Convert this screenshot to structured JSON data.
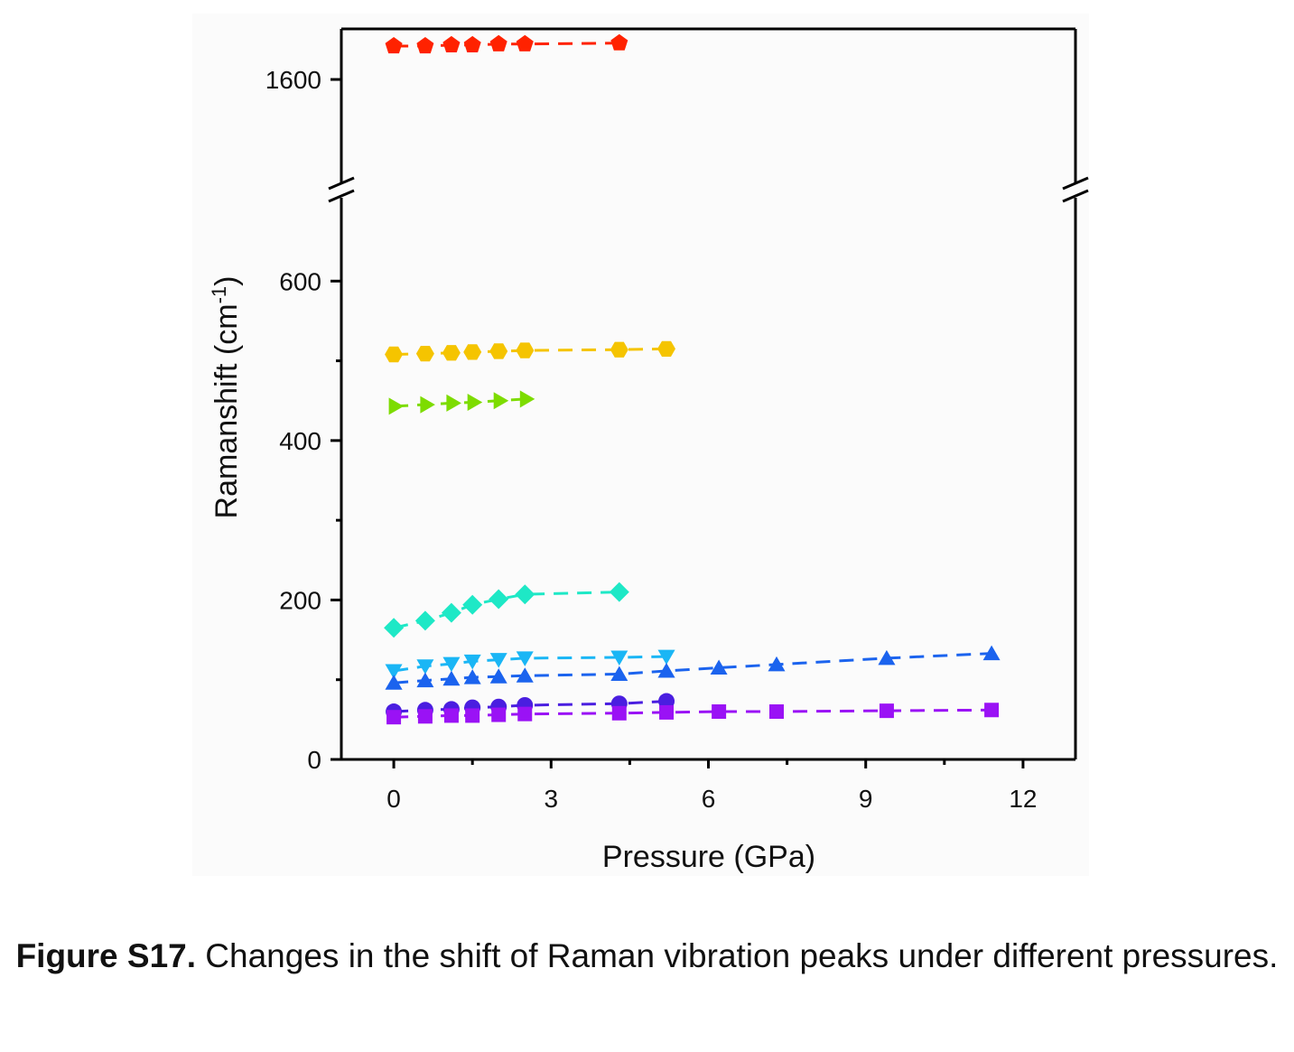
{
  "chart_data": {
    "type": "scatter",
    "xlabel": "Pressure (GPa)",
    "ylabel_main": "Ramanshift (cm",
    "ylabel_sup": "-1",
    "ylabel_close": ")",
    "xlim": [
      -1,
      13
    ],
    "xticks": [
      0,
      3,
      6,
      9,
      12
    ],
    "ylim_lower": [
      0,
      700
    ],
    "yticks_lower": [
      0,
      200,
      400,
      600
    ],
    "ylim_upper": [
      1500,
      1650
    ],
    "yticks_upper": [
      1600
    ],
    "axis_break": true,
    "grid": false,
    "legend": "none",
    "series": [
      {
        "marker": "pentagon",
        "color": "#ff2200",
        "x": [
          0,
          0.6,
          1.1,
          1.5,
          2.0,
          2.5,
          4.3
        ],
        "y": [
          1633,
          1633,
          1634,
          1634,
          1635,
          1635,
          1636
        ]
      },
      {
        "marker": "hexagon",
        "color": "#f5c400",
        "x": [
          0,
          0.6,
          1.1,
          1.5,
          2.0,
          2.5,
          4.3,
          5.2
        ],
        "y": [
          508,
          509,
          510,
          511,
          512,
          513,
          514,
          515
        ]
      },
      {
        "marker": "triangle-right",
        "color": "#7ddc00",
        "x": [
          0,
          0.6,
          1.1,
          1.5,
          2.0,
          2.5
        ],
        "y": [
          443,
          445,
          447,
          448,
          450,
          452
        ]
      },
      {
        "marker": "diamond",
        "color": "#1ee8c6",
        "x": [
          0,
          0.6,
          1.1,
          1.5,
          2.0,
          2.5,
          4.3
        ],
        "y": [
          165,
          174,
          184,
          194,
          201,
          207,
          210
        ]
      },
      {
        "marker": "triangle-down",
        "color": "#1ab6f5",
        "x": [
          0,
          0.6,
          1.1,
          1.5,
          2.0,
          2.5,
          4.3,
          5.2
        ],
        "y": [
          111,
          117,
          120,
          123,
          125,
          127,
          128,
          129
        ]
      },
      {
        "marker": "triangle-up",
        "color": "#1b63ee",
        "x": [
          0,
          0.6,
          1.1,
          1.5,
          2.0,
          2.5,
          4.3,
          5.2,
          6.2,
          7.3,
          9.4,
          11.4
        ],
        "y": [
          96,
          99,
          101,
          103,
          104,
          105,
          107,
          111,
          115,
          119,
          127,
          133
        ]
      },
      {
        "marker": "circle",
        "color": "#4a1ee0",
        "x": [
          0,
          0.6,
          1.1,
          1.5,
          2.0,
          2.5,
          4.3,
          5.2
        ],
        "y": [
          60,
          62,
          63,
          65,
          66,
          68,
          70,
          73
        ]
      },
      {
        "marker": "square",
        "color": "#9a12f5",
        "x": [
          0,
          0.6,
          1.1,
          1.5,
          2.0,
          2.5,
          4.3,
          5.2,
          6.2,
          7.3,
          9.4,
          11.4
        ],
        "y": [
          53,
          54,
          55,
          55,
          56,
          57,
          58,
          59,
          60,
          60,
          61,
          62
        ]
      }
    ]
  },
  "caption": {
    "label": "Figure S17.",
    "text": " Changes in the shift of Raman vibration peaks under different pressures."
  }
}
